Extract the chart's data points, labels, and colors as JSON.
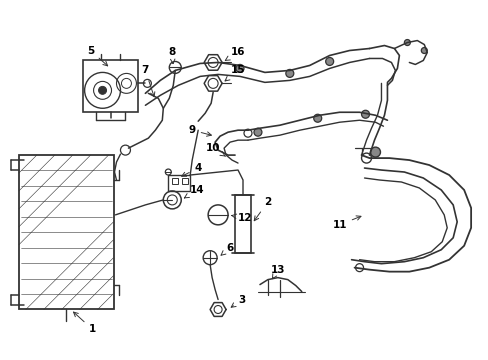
{
  "bg_color": "#ffffff",
  "line_color": "#333333",
  "text_color": "#000000",
  "fig_width": 4.89,
  "fig_height": 3.6,
  "dpi": 100,
  "label_positions": {
    "1": [
      0.185,
      0.075,
      0.16,
      0.105
    ],
    "2": [
      0.5,
      0.445,
      0.468,
      0.445
    ],
    "3": [
      0.46,
      0.33,
      0.44,
      0.355
    ],
    "4": [
      0.37,
      0.52,
      0.345,
      0.525
    ],
    "5": [
      0.17,
      0.84,
      0.185,
      0.81
    ],
    "6": [
      0.39,
      0.38,
      0.368,
      0.395
    ],
    "7": [
      0.285,
      0.73,
      0.295,
      0.7
    ],
    "8": [
      0.355,
      0.835,
      0.35,
      0.8
    ],
    "9": [
      0.35,
      0.625,
      0.36,
      0.65
    ],
    "10": [
      0.42,
      0.525,
      0.418,
      0.555
    ],
    "11": [
      0.68,
      0.39,
      0.72,
      0.4
    ],
    "12": [
      0.39,
      0.49,
      0.37,
      0.51
    ],
    "13": [
      0.5,
      0.36,
      0.49,
      0.38
    ],
    "14": [
      0.37,
      0.48,
      0.348,
      0.485
    ],
    "15": [
      0.45,
      0.775,
      0.426,
      0.775
    ],
    "16": [
      0.45,
      0.845,
      0.415,
      0.845
    ]
  }
}
